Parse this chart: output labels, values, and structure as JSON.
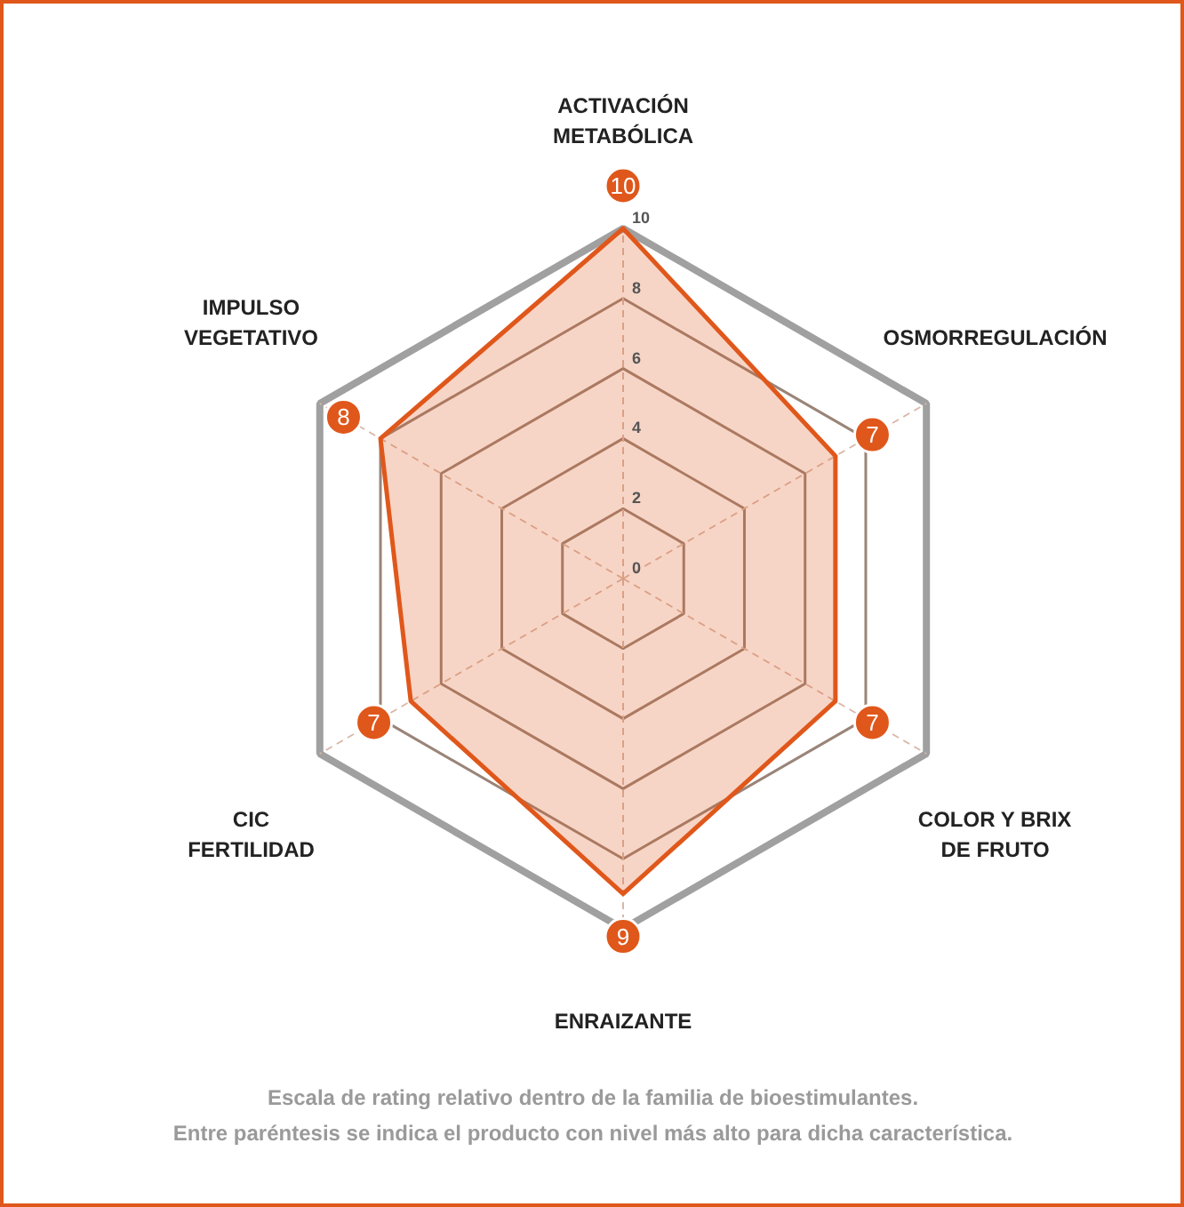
{
  "chart_data": {
    "type": "radar",
    "categories": [
      "ACTIVACIÓN\nMETABÓLICA",
      "OSMORREGULACIÓN",
      "COLOR Y BRIX\nDE FRUTO",
      "ENRAIZANTE",
      "CIC\nFERTILIDAD",
      "IMPULSO\nVEGETATIVO"
    ],
    "series": [
      {
        "color": "#e0571b",
        "values": [
          10,
          7,
          7,
          9,
          7,
          8
        ]
      }
    ],
    "ylim": [
      0,
      10
    ],
    "yticks": [
      0,
      2,
      4,
      6,
      8,
      10
    ],
    "grid": true,
    "data_labels": true,
    "annotations": [
      "Escala de rating relativo dentro de la familia de bioestimulantes.",
      "Entre paréntesis se indica el producto con nivel más alto para dicha característica."
    ]
  }
}
